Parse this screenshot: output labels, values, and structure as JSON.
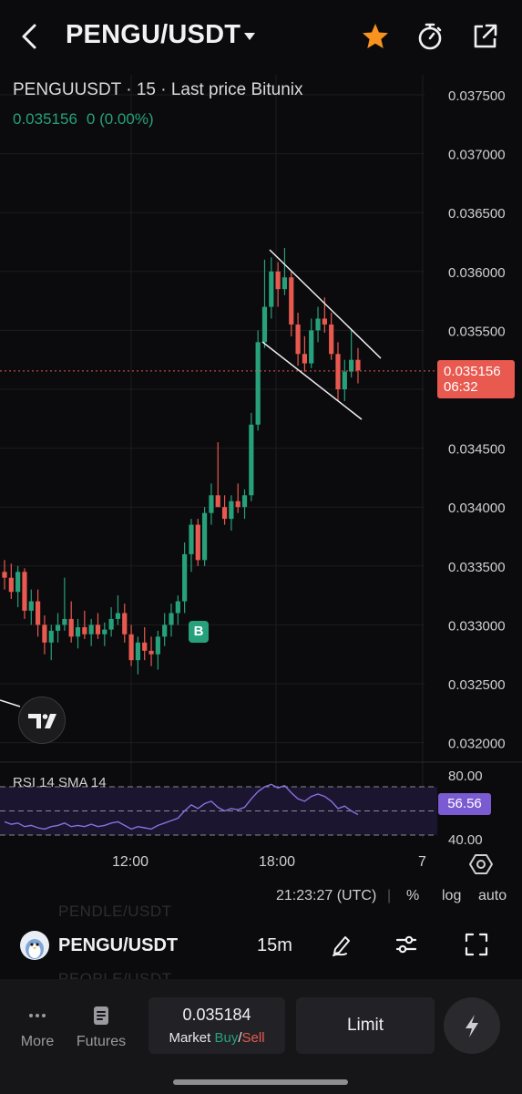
{
  "header": {
    "title": "PENGU/USDT",
    "icons": {
      "back": "back-arrow-icon",
      "caret": "caret-down-icon",
      "favorite": "star-icon",
      "timer": "stopwatch-icon",
      "share": "share-icon"
    },
    "favorite_color": "#f7931e"
  },
  "chart_info": {
    "symbol_line": "PENGUUSDT · 15 · Last price Bitunix",
    "last_price": "0.035156",
    "change": "0 (0.00%)",
    "price_tag": "0.035156",
    "countdown": "06:32",
    "marker": "B"
  },
  "rsi": {
    "label": "RSI 14 SMA 14",
    "value": "56.56",
    "ticks": [
      "80.00",
      "40.00"
    ]
  },
  "time_axis": {
    "labels": [
      "12:00",
      "18:00",
      "7"
    ],
    "utc": "21:23:27 (UTC)",
    "options": [
      "%",
      "log",
      "auto"
    ]
  },
  "chart_data": {
    "type": "candlestick",
    "interval": "15",
    "ylim": [
      0.0318,
      0.0376
    ],
    "y_ticks": [
      "0.037500",
      "0.037000",
      "0.036500",
      "0.036000",
      "0.035500",
      "0.035000",
      "0.034500",
      "0.034000",
      "0.033500",
      "0.033000",
      "0.032500",
      "0.032000"
    ],
    "candles": [
      [
        0.03345,
        0.03355,
        0.0333,
        0.0334
      ],
      [
        0.0334,
        0.03352,
        0.03322,
        0.03328
      ],
      [
        0.03328,
        0.0335,
        0.03315,
        0.03345
      ],
      [
        0.03345,
        0.03348,
        0.03305,
        0.03312
      ],
      [
        0.03312,
        0.0333,
        0.033,
        0.0332
      ],
      [
        0.0332,
        0.0333,
        0.0329,
        0.033
      ],
      [
        0.033,
        0.03308,
        0.03275,
        0.03285
      ],
      [
        0.03285,
        0.033,
        0.0327,
        0.03295
      ],
      [
        0.03295,
        0.0331,
        0.03285,
        0.033
      ],
      [
        0.033,
        0.0334,
        0.03295,
        0.03305
      ],
      [
        0.03305,
        0.0332,
        0.03285,
        0.0329
      ],
      [
        0.0329,
        0.03305,
        0.0328,
        0.03298
      ],
      [
        0.03298,
        0.03312,
        0.03288,
        0.03292
      ],
      [
        0.03292,
        0.03305,
        0.03282,
        0.033
      ],
      [
        0.033,
        0.0331,
        0.03288,
        0.03292
      ],
      [
        0.03292,
        0.03302,
        0.03282,
        0.03296
      ],
      [
        0.03296,
        0.03315,
        0.0329,
        0.03305
      ],
      [
        0.03305,
        0.03325,
        0.033,
        0.0331
      ],
      [
        0.0331,
        0.03318,
        0.03285,
        0.03292
      ],
      [
        0.03292,
        0.033,
        0.03265,
        0.0327
      ],
      [
        0.0327,
        0.0329,
        0.03258,
        0.03285
      ],
      [
        0.03285,
        0.03298,
        0.0327,
        0.03278
      ],
      [
        0.03278,
        0.0329,
        0.03265,
        0.03275
      ],
      [
        0.03275,
        0.03295,
        0.03262,
        0.0329
      ],
      [
        0.0329,
        0.0331,
        0.03282,
        0.033
      ],
      [
        0.033,
        0.03318,
        0.0329,
        0.0331
      ],
      [
        0.0331,
        0.03325,
        0.033,
        0.0332
      ],
      [
        0.0332,
        0.0337,
        0.0331,
        0.0336
      ],
      [
        0.0336,
        0.0339,
        0.03345,
        0.03385
      ],
      [
        0.03385,
        0.0339,
        0.0335,
        0.03355
      ],
      [
        0.03355,
        0.034,
        0.0335,
        0.03395
      ],
      [
        0.03395,
        0.0342,
        0.03385,
        0.0341
      ],
      [
        0.0341,
        0.03455,
        0.034,
        0.034
      ],
      [
        0.034,
        0.0341,
        0.03385,
        0.0339
      ],
      [
        0.0339,
        0.0341,
        0.0338,
        0.03405
      ],
      [
        0.03405,
        0.0342,
        0.03395,
        0.034
      ],
      [
        0.034,
        0.03415,
        0.0339,
        0.0341
      ],
      [
        0.0341,
        0.0348,
        0.03405,
        0.0347
      ],
      [
        0.0347,
        0.0355,
        0.03465,
        0.0354
      ],
      [
        0.0354,
        0.0361,
        0.03535,
        0.0357
      ],
      [
        0.0357,
        0.03612,
        0.0356,
        0.036
      ],
      [
        0.036,
        0.03608,
        0.0357,
        0.03585
      ],
      [
        0.03585,
        0.0362,
        0.0358,
        0.03595
      ],
      [
        0.03595,
        0.036,
        0.03545,
        0.03555
      ],
      [
        0.03555,
        0.03565,
        0.0352,
        0.0353
      ],
      [
        0.0353,
        0.03545,
        0.03515,
        0.03522
      ],
      [
        0.03522,
        0.0356,
        0.03518,
        0.0355
      ],
      [
        0.0355,
        0.0357,
        0.0354,
        0.0356
      ],
      [
        0.0356,
        0.03578,
        0.03548,
        0.03555
      ],
      [
        0.03555,
        0.03565,
        0.03525,
        0.0353
      ],
      [
        0.0353,
        0.0354,
        0.0349,
        0.035
      ],
      [
        0.035,
        0.03525,
        0.0349,
        0.03515
      ],
      [
        0.03515,
        0.0355,
        0.0351,
        0.03525
      ],
      [
        0.03525,
        0.03535,
        0.03505,
        0.03516
      ]
    ],
    "last_price": 0.035156,
    "rsi_levels": [
      80,
      40
    ],
    "rsi_value": 56.56,
    "rsi_values": [
      51,
      49,
      50,
      47,
      48,
      46,
      45,
      47,
      48,
      50,
      47,
      48,
      47,
      49,
      47,
      48,
      50,
      51,
      48,
      45,
      47,
      46,
      45,
      48,
      50,
      52,
      54,
      60,
      65,
      62,
      66,
      68,
      63,
      60,
      62,
      61,
      63,
      70,
      76,
      80,
      82,
      79,
      81,
      75,
      70,
      68,
      72,
      74,
      72,
      68,
      62,
      64,
      60,
      57
    ],
    "colors": {
      "up": "#26a17b",
      "down": "#e8594f",
      "rsi": "#8b6fe0",
      "price_line": "#e8594f"
    }
  },
  "symbol_bar": {
    "name": "PENGU/USDT",
    "interval": "15m",
    "ghost_above": "PENDLE/USDT",
    "ghost_below": "PEOPLE/USDT"
  },
  "bottom_nav": {
    "more_label": "More",
    "futures_label": "Futures",
    "market_price": "0.035184",
    "market_prefix": "Market ",
    "buy_label": "Buy",
    "slash": "/",
    "sell_label": "Sell",
    "limit_label": "Limit"
  }
}
